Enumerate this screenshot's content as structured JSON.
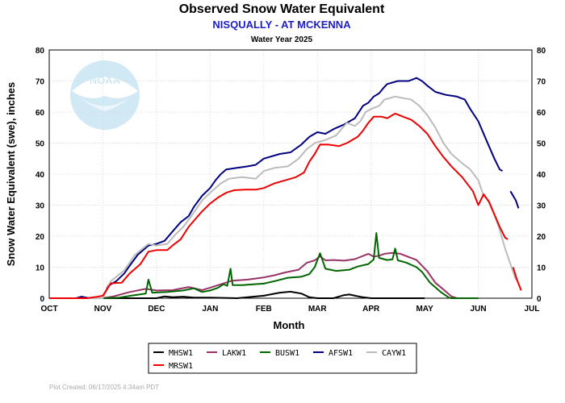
{
  "chart_data": {
    "type": "line",
    "title": "Observed Snow Water Equivalent",
    "subtitle": "NISQUALLY - AT MCKENNA",
    "subtitle2": "Water Year 2025",
    "xlabel": "Month",
    "ylabel": "Snow Water Equivalent (swe), inches",
    "ylim": [
      0,
      80
    ],
    "yticks": [
      0,
      10,
      20,
      30,
      40,
      50,
      60,
      70,
      80
    ],
    "xlim": [
      0,
      9
    ],
    "xticks": [
      "OCT",
      "NOV",
      "DEC",
      "JAN",
      "FEB",
      "MAR",
      "APR",
      "MAY",
      "JUN",
      "JUL"
    ],
    "grid": true,
    "legend_position": "bottom",
    "footer": "Plot Created: 06/17/2025 4:34am PDT",
    "logo_text": "NOAA",
    "series": [
      {
        "name": "MHSW1",
        "color": "#000000",
        "points": [
          [
            0,
            0
          ],
          [
            2.0,
            0
          ],
          [
            2.15,
            0.6
          ],
          [
            2.3,
            0.3
          ],
          [
            2.5,
            0.5
          ],
          [
            2.7,
            0.2
          ],
          [
            3.0,
            0.2
          ],
          [
            3.5,
            0
          ],
          [
            4.0,
            0.8
          ],
          [
            4.3,
            1.8
          ],
          [
            4.5,
            2.1
          ],
          [
            4.7,
            1.5
          ],
          [
            4.85,
            0.3
          ],
          [
            5.0,
            0
          ],
          [
            5.3,
            0
          ],
          [
            5.5,
            1.0
          ],
          [
            5.6,
            1.2
          ],
          [
            5.7,
            0.8
          ],
          [
            5.85,
            0.3
          ],
          [
            6.0,
            0
          ],
          [
            7.0,
            0
          ]
        ]
      },
      {
        "name": "LAKW1",
        "color": "#993366",
        "points": [
          [
            0,
            0
          ],
          [
            1.0,
            0
          ],
          [
            1.2,
            0.6
          ],
          [
            1.5,
            2.0
          ],
          [
            1.8,
            3.0
          ],
          [
            2.0,
            2.5
          ],
          [
            2.3,
            2.6
          ],
          [
            2.6,
            3.6
          ],
          [
            2.85,
            2.6
          ],
          [
            3.0,
            3.4
          ],
          [
            3.2,
            4.5
          ],
          [
            3.4,
            5.6
          ],
          [
            3.7,
            6.0
          ],
          [
            4.0,
            6.7
          ],
          [
            4.2,
            7.4
          ],
          [
            4.4,
            8.3
          ],
          [
            4.65,
            9.2
          ],
          [
            4.8,
            11.4
          ],
          [
            4.95,
            12.2
          ],
          [
            5.05,
            13.5
          ],
          [
            5.15,
            12.2
          ],
          [
            5.3,
            12.3
          ],
          [
            5.5,
            12.1
          ],
          [
            5.7,
            12.6
          ],
          [
            5.95,
            14.3
          ],
          [
            6.05,
            13.4
          ],
          [
            6.15,
            13.7
          ],
          [
            6.25,
            14.3
          ],
          [
            6.4,
            14.6
          ],
          [
            6.55,
            14.3
          ],
          [
            6.7,
            13.3
          ],
          [
            6.85,
            12.3
          ],
          [
            6.95,
            10.5
          ],
          [
            7.05,
            8.7
          ],
          [
            7.2,
            5.0
          ],
          [
            7.35,
            2.8
          ],
          [
            7.5,
            0.6
          ],
          [
            7.6,
            0
          ],
          [
            8.0,
            0
          ]
        ]
      },
      {
        "name": "BUSW1",
        "color": "#006600",
        "points": [
          [
            0,
            0
          ],
          [
            1.0,
            0
          ],
          [
            1.3,
            0.2
          ],
          [
            1.6,
            1.0
          ],
          [
            1.8,
            1.5
          ],
          [
            1.85,
            6.0
          ],
          [
            1.92,
            1.8
          ],
          [
            2.2,
            2.0
          ],
          [
            2.5,
            2.5
          ],
          [
            2.7,
            3.2
          ],
          [
            2.85,
            2.0
          ],
          [
            3.0,
            2.5
          ],
          [
            3.15,
            3.4
          ],
          [
            3.25,
            4.5
          ],
          [
            3.32,
            4.0
          ],
          [
            3.38,
            9.5
          ],
          [
            3.42,
            4.2
          ],
          [
            3.6,
            4.2
          ],
          [
            3.8,
            4.5
          ],
          [
            4.0,
            4.7
          ],
          [
            4.2,
            5.5
          ],
          [
            4.45,
            6.6
          ],
          [
            4.7,
            6.9
          ],
          [
            4.85,
            7.8
          ],
          [
            4.95,
            10.0
          ],
          [
            5.05,
            14.5
          ],
          [
            5.15,
            9.5
          ],
          [
            5.35,
            8.8
          ],
          [
            5.6,
            9.2
          ],
          [
            5.75,
            10.2
          ],
          [
            5.95,
            11.0
          ],
          [
            6.05,
            12.5
          ],
          [
            6.1,
            21.0
          ],
          [
            6.15,
            13.0
          ],
          [
            6.3,
            12.3
          ],
          [
            6.4,
            12.5
          ],
          [
            6.45,
            16.0
          ],
          [
            6.5,
            12.2
          ],
          [
            6.65,
            11.5
          ],
          [
            6.85,
            10.0
          ],
          [
            6.95,
            8.5
          ],
          [
            7.1,
            5.0
          ],
          [
            7.3,
            2.0
          ],
          [
            7.45,
            0.2
          ],
          [
            7.5,
            0
          ],
          [
            8.0,
            0
          ]
        ]
      },
      {
        "name": "AFSW1",
        "color": "#000080",
        "points": [
          [
            0,
            0
          ],
          [
            0.5,
            0
          ],
          [
            0.6,
            0.5
          ],
          [
            0.75,
            0
          ],
          [
            1.0,
            0
          ],
          [
            1.1,
            4.0
          ],
          [
            1.25,
            5.5
          ],
          [
            1.4,
            8.0
          ],
          [
            1.5,
            10.5
          ],
          [
            1.65,
            14.0
          ],
          [
            1.85,
            17.0
          ],
          [
            2.0,
            17.5
          ],
          [
            2.15,
            18.5
          ],
          [
            2.3,
            21.5
          ],
          [
            2.45,
            24.5
          ],
          [
            2.6,
            26.5
          ],
          [
            2.7,
            29.5
          ],
          [
            2.85,
            33.0
          ],
          [
            3.0,
            35.5
          ],
          [
            3.1,
            38.0
          ],
          [
            3.2,
            40.0
          ],
          [
            3.3,
            41.5
          ],
          [
            3.5,
            42.0
          ],
          [
            3.7,
            42.5
          ],
          [
            3.85,
            43.0
          ],
          [
            4.0,
            45.0
          ],
          [
            4.3,
            46.5
          ],
          [
            4.5,
            47.0
          ],
          [
            4.7,
            49.5
          ],
          [
            4.85,
            52.0
          ],
          [
            5.0,
            53.5
          ],
          [
            5.15,
            53.0
          ],
          [
            5.3,
            54.5
          ],
          [
            5.5,
            56.0
          ],
          [
            5.7,
            58.0
          ],
          [
            5.85,
            62.0
          ],
          [
            5.95,
            63.0
          ],
          [
            6.0,
            64.0
          ],
          [
            6.05,
            65.0
          ],
          [
            6.15,
            66.0
          ],
          [
            6.22,
            67.5
          ],
          [
            6.3,
            69.0
          ],
          [
            6.5,
            70.0
          ],
          [
            6.7,
            70.0
          ],
          [
            6.85,
            71.0
          ],
          [
            6.95,
            70.0
          ],
          [
            7.05,
            68.5
          ],
          [
            7.2,
            66.5
          ],
          [
            7.4,
            65.5
          ],
          [
            7.6,
            65.0
          ],
          [
            7.75,
            64.0
          ],
          [
            7.85,
            61.0
          ],
          [
            8.0,
            57.0
          ],
          [
            8.15,
            51.0
          ],
          [
            8.3,
            45.0
          ],
          [
            8.4,
            41.5
          ],
          [
            8.45,
            41.0
          ],
          null,
          [
            8.6,
            34.5
          ],
          [
            8.7,
            31.5
          ],
          [
            8.75,
            29.0
          ]
        ]
      },
      {
        "name": "CAYW1",
        "color": "#bbbbbb",
        "points": [
          [
            0,
            0
          ],
          [
            1.0,
            0
          ],
          [
            1.15,
            5.5
          ],
          [
            1.4,
            9.0
          ],
          [
            1.6,
            14.0
          ],
          [
            1.85,
            17.5
          ],
          [
            2.0,
            17.0
          ],
          [
            2.2,
            17.5
          ],
          [
            2.35,
            20.5
          ],
          [
            2.5,
            23.0
          ],
          [
            2.65,
            26.5
          ],
          [
            2.85,
            31.5
          ],
          [
            3.0,
            34.0
          ],
          [
            3.2,
            37.0
          ],
          [
            3.35,
            38.5
          ],
          [
            3.6,
            39.0
          ],
          [
            3.85,
            38.5
          ],
          [
            4.0,
            41.0
          ],
          [
            4.2,
            42.0
          ],
          [
            4.45,
            42.5
          ],
          [
            4.65,
            45.0
          ],
          [
            4.8,
            48.0
          ],
          [
            4.95,
            50.0
          ],
          [
            5.15,
            51.0
          ],
          [
            5.35,
            52.5
          ],
          [
            5.55,
            56.5
          ],
          [
            5.7,
            55.5
          ],
          [
            5.8,
            57.0
          ],
          [
            5.9,
            60.0
          ],
          [
            6.0,
            61.0
          ],
          [
            6.15,
            62.0
          ],
          [
            6.25,
            64.0
          ],
          [
            6.45,
            65.0
          ],
          [
            6.6,
            64.5
          ],
          [
            6.75,
            64.0
          ],
          [
            6.9,
            62.0
          ],
          [
            7.05,
            59.0
          ],
          [
            7.2,
            55.0
          ],
          [
            7.35,
            50.0
          ],
          [
            7.5,
            46.5
          ],
          [
            7.7,
            43.5
          ],
          [
            7.85,
            41.5
          ],
          [
            8.0,
            38.0
          ],
          [
            8.1,
            33.0
          ],
          [
            8.2,
            31.5
          ],
          [
            8.3,
            27.0
          ],
          [
            8.4,
            22.0
          ],
          [
            8.5,
            16.0
          ],
          [
            8.6,
            11.0
          ],
          [
            8.7,
            6.0
          ]
        ]
      },
      {
        "name": "MRSW1",
        "color": "#ee0000",
        "points": [
          [
            0,
            0
          ],
          [
            0.7,
            0
          ],
          [
            0.9,
            0.5
          ],
          [
            1.0,
            0.8
          ],
          [
            1.15,
            4.8
          ],
          [
            1.35,
            5.0
          ],
          [
            1.5,
            8.0
          ],
          [
            1.7,
            11.0
          ],
          [
            1.85,
            15.0
          ],
          [
            2.0,
            15.5
          ],
          [
            2.2,
            15.5
          ],
          [
            2.3,
            17.0
          ],
          [
            2.45,
            19.0
          ],
          [
            2.6,
            23.0
          ],
          [
            2.75,
            26.0
          ],
          [
            2.85,
            28.0
          ],
          [
            3.0,
            30.5
          ],
          [
            3.15,
            32.5
          ],
          [
            3.3,
            34.0
          ],
          [
            3.45,
            34.8
          ],
          [
            3.65,
            35.0
          ],
          [
            3.85,
            35.0
          ],
          [
            4.0,
            35.5
          ],
          [
            4.2,
            37.0
          ],
          [
            4.4,
            38.0
          ],
          [
            4.6,
            39.0
          ],
          [
            4.75,
            40.5
          ],
          [
            4.85,
            44.0
          ],
          [
            4.95,
            46.5
          ],
          [
            5.05,
            49.5
          ],
          [
            5.2,
            49.5
          ],
          [
            5.4,
            49.0
          ],
          [
            5.55,
            50.0
          ],
          [
            5.75,
            52.0
          ],
          [
            5.85,
            54.0
          ],
          [
            5.95,
            56.5
          ],
          [
            6.05,
            58.5
          ],
          [
            6.2,
            58.5
          ],
          [
            6.3,
            58.0
          ],
          [
            6.45,
            59.5
          ],
          [
            6.6,
            58.5
          ],
          [
            6.75,
            57.5
          ],
          [
            6.9,
            55.5
          ],
          [
            7.05,
            53.0
          ],
          [
            7.2,
            49.0
          ],
          [
            7.35,
            45.5
          ],
          [
            7.5,
            42.5
          ],
          [
            7.7,
            39.0
          ],
          [
            7.9,
            34.5
          ],
          [
            8.0,
            30.0
          ],
          [
            8.1,
            33.5
          ],
          [
            8.2,
            31.0
          ],
          [
            8.3,
            27.0
          ],
          [
            8.4,
            23.0
          ],
          [
            8.5,
            19.5
          ],
          [
            8.55,
            19.0
          ],
          null,
          [
            8.65,
            10.0
          ],
          [
            8.72,
            6.0
          ],
          [
            8.8,
            2.5
          ]
        ]
      }
    ]
  }
}
